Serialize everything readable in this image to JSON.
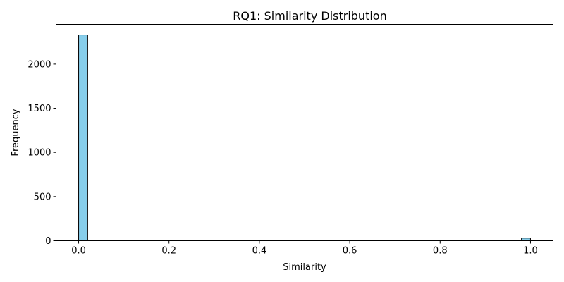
{
  "chart_data": {
    "type": "histogram",
    "title": "RQ1: Similarity Distribution",
    "xlabel": "Similarity",
    "ylabel": "Frequency",
    "xlim": [
      -0.05,
      1.05
    ],
    "ylim": [
      0,
      2450
    ],
    "xticks": [
      0.0,
      0.2,
      0.4,
      0.6,
      0.8,
      1.0
    ],
    "xtick_labels": [
      "0.0",
      "0.2",
      "0.4",
      "0.6",
      "0.8",
      "1.0"
    ],
    "yticks": [
      0,
      500,
      1000,
      1500,
      2000
    ],
    "ytick_labels": [
      "0",
      "500",
      "1000",
      "1500",
      "2000"
    ],
    "bins": 50,
    "range": [
      0.0,
      1.0
    ],
    "counts_nonzero": [
      {
        "x0": 0.0,
        "x1": 0.02,
        "value": 2330
      },
      {
        "x0": 0.98,
        "x1": 1.0,
        "value": 30
      }
    ],
    "bar_fill": "#87ceeb",
    "bar_edge": "#000000",
    "grid": false,
    "legend": "none"
  }
}
